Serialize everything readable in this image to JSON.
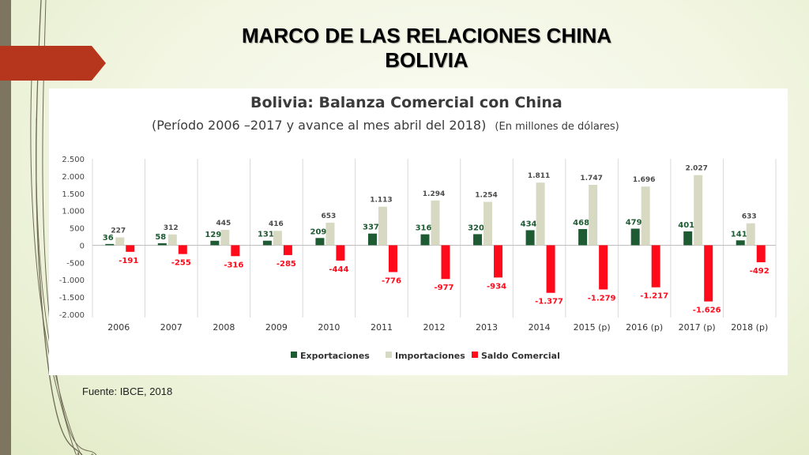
{
  "slide": {
    "title_line1": "MARCO DE LAS RELACIONES CHINA",
    "title_line2": "BOLIVIA",
    "source": "Fuente: IBCE, 2018"
  },
  "colors": {
    "accent": "#b5361d",
    "exportaciones": "#1e5a32",
    "importaciones": "#d8d9c2",
    "saldo": "#ff0a1a"
  },
  "chart_data": {
    "type": "bar",
    "title": "Bolivia: Balanza Comercial con China",
    "subtitle": "(Período 2006 –2017 y avance al mes abril del 2018)",
    "subtitle_units": "(En millones de dólares)",
    "categories": [
      "2006",
      "2007",
      "2008",
      "2009",
      "2010",
      "2011",
      "2012",
      "2013",
      "2014",
      "2015 (p)",
      "2016 (p)",
      "2017 (p)",
      "2018 (p)"
    ],
    "series": [
      {
        "name": "Exportaciones",
        "values": [
          36,
          58,
          129,
          131,
          209,
          337,
          316,
          320,
          434,
          468,
          479,
          401,
          141
        ],
        "labels": [
          "36",
          "58",
          "129",
          "131",
          "209",
          "337",
          "316",
          "320",
          "434",
          "468",
          "479",
          "401",
          "141"
        ]
      },
      {
        "name": "Importaciones",
        "values": [
          227,
          312,
          445,
          416,
          653,
          1113,
          1294,
          1254,
          1811,
          1747,
          1696,
          2027,
          633
        ],
        "labels": [
          "227",
          "312",
          "445",
          "416",
          "653",
          "1.113",
          "1.294",
          "1.254",
          "1.811",
          "1.747",
          "1.696",
          "2.027",
          "633"
        ]
      },
      {
        "name": "Saldo Comercial",
        "values": [
          -191,
          -255,
          -316,
          -285,
          -444,
          -776,
          -977,
          -934,
          -1377,
          -1279,
          -1217,
          -1626,
          -492
        ],
        "labels": [
          "-191",
          "-255",
          "-316",
          "-285",
          "-444",
          "-776",
          "-977",
          "-934",
          "-1.377",
          "-1.279",
          "-1.217",
          "-1.626",
          "-492"
        ]
      }
    ],
    "ylim": [
      -2000,
      2500
    ],
    "yticks": [
      2500,
      2000,
      1500,
      1000,
      500,
      0,
      -500,
      -1000,
      -1500,
      -2000
    ],
    "ytick_labels": [
      "2.500",
      "2.000",
      "1.500",
      "1.000",
      "500",
      "0",
      "-500",
      "-1.000",
      "-1.500",
      "-2.000"
    ],
    "grid": "vertical",
    "legend": "bottom-center"
  }
}
